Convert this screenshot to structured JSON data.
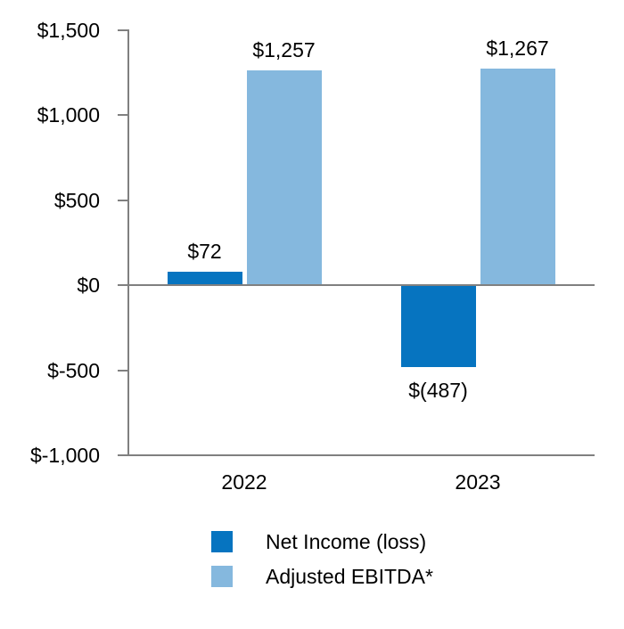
{
  "chart_data": {
    "type": "bar",
    "title": "",
    "xlabel": "",
    "ylabel": "",
    "grid": "off",
    "categories": [
      "2022",
      "2023"
    ],
    "series": [
      {
        "name": "Net Income (loss)",
        "color": "#0674c0",
        "values": [
          72,
          -487
        ],
        "labels": [
          "$72",
          "$(487)"
        ]
      },
      {
        "name": "Adjusted EBITDA*",
        "color": "#85b8de",
        "values": [
          1257,
          1267
        ],
        "labels": [
          "$1,257",
          "$1,267"
        ]
      }
    ],
    "y_axis": {
      "min": -1000,
      "max": 1500,
      "step": 500,
      "ticks": [
        1500,
        1000,
        500,
        0,
        -500,
        -1000
      ],
      "tick_labels": [
        "$1,500",
        "$1,000",
        "$500",
        "$0",
        "$-500",
        "$-1,000"
      ]
    },
    "x_axis": {
      "labels": [
        "2022",
        "2023"
      ]
    },
    "legend": {
      "position": "bottom"
    },
    "axis_color": "#808080",
    "text_color": "#000000"
  }
}
